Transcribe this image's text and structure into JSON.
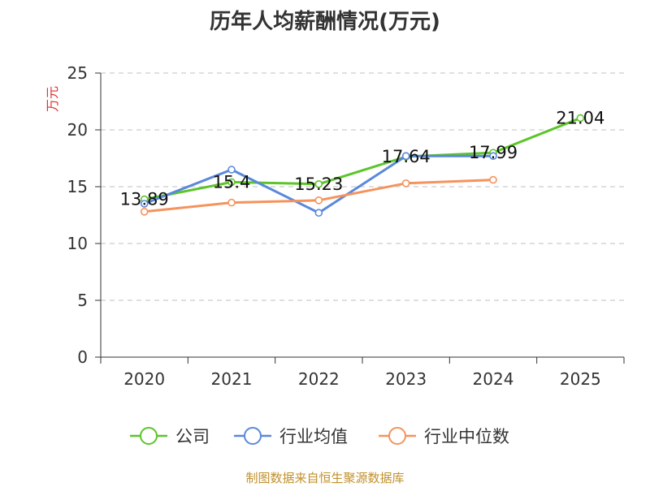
{
  "chart_data": {
    "type": "line",
    "title": "历年人均薪酬情况(万元)",
    "ylabel": "万元",
    "xlabel": "",
    "categories": [
      "2020",
      "2021",
      "2022",
      "2023",
      "2024",
      "2025"
    ],
    "ylim": [
      0,
      25
    ],
    "yticks": [
      0,
      5,
      10,
      15,
      20,
      25
    ],
    "grid": "horizontal dashed",
    "legend_position": "bottom",
    "series": [
      {
        "name": "公司",
        "color": "#5cc52a",
        "values": [
          13.89,
          15.4,
          15.23,
          17.64,
          17.99,
          21.04
        ],
        "show_labels": true
      },
      {
        "name": "行业均值",
        "color": "#5b88db",
        "values": [
          13.5,
          16.5,
          12.7,
          17.7,
          17.7,
          null
        ],
        "show_labels": false
      },
      {
        "name": "行业中位数",
        "color": "#f5935c",
        "values": [
          12.8,
          13.6,
          13.8,
          15.3,
          15.6,
          null
        ],
        "show_labels": false
      }
    ]
  },
  "footer": {
    "source": "制图数据来自恒生聚源数据库"
  },
  "colors": {
    "axis": "#333333",
    "grid": "#cccccc",
    "ylabel": "#e03030"
  }
}
